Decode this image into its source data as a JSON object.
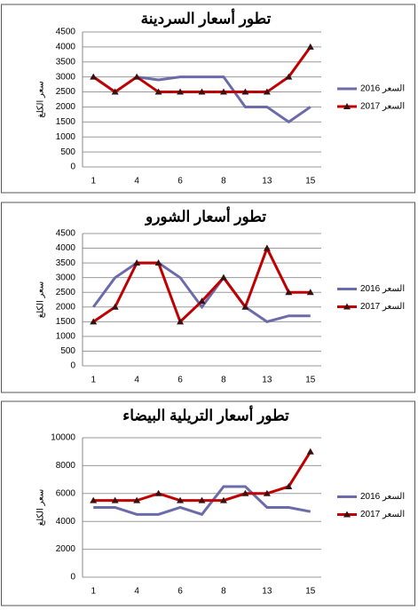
{
  "chart_data": [
    {
      "type": "line",
      "title": "تطور أسعار السردينة",
      "y_label": "سعر الكلغ",
      "categories": [
        "1",
        null,
        "4",
        null,
        "6",
        null,
        "8",
        null,
        "13",
        null,
        "15"
      ],
      "series": [
        {
          "name": "السعر 2016",
          "color": "#6b6baa",
          "values": [
            3000,
            2500,
            3000,
            2900,
            3000,
            3000,
            3000,
            2000,
            2000,
            1500,
            2000
          ]
        },
        {
          "name": "السعر 2017",
          "color": "#c00000",
          "marker": "triangle",
          "values": [
            3000,
            2500,
            3000,
            2500,
            2500,
            2500,
            2500,
            2500,
            2500,
            3000,
            4000
          ]
        }
      ],
      "ylim": [
        0,
        4500
      ],
      "yticks": [
        0,
        500,
        1000,
        1500,
        2000,
        2500,
        3000,
        3500,
        4000,
        4500
      ],
      "grid": true,
      "legend": "right"
    },
    {
      "type": "line",
      "title": "تطور أسعار الشورو",
      "y_label": "سعر الكلغ",
      "categories": [
        "1",
        null,
        "4",
        null,
        "6",
        null,
        "8",
        null,
        "13",
        null,
        "15"
      ],
      "series": [
        {
          "name": "السعر 2016",
          "color": "#6b6baa",
          "values": [
            2000,
            3000,
            3500,
            3500,
            3000,
            2000,
            3000,
            2000,
            1500,
            1700,
            1700
          ]
        },
        {
          "name": "السعر 2017",
          "color": "#c00000",
          "marker": "triangle",
          "values": [
            1500,
            2000,
            3500,
            3500,
            1500,
            2200,
            3000,
            2000,
            4000,
            2500,
            2500
          ]
        }
      ],
      "ylim": [
        0,
        4500
      ],
      "yticks": [
        0,
        500,
        1000,
        1500,
        2000,
        2500,
        3000,
        3500,
        4000,
        4500
      ],
      "grid": true,
      "legend": "right"
    },
    {
      "type": "line",
      "title": "تطور أسعار التريلية البيضاء",
      "y_label": "سعر الكلغ",
      "categories": [
        "1",
        null,
        "4",
        null,
        "6",
        null,
        "8",
        null,
        "13",
        null,
        "15"
      ],
      "series": [
        {
          "name": "السعر 2016",
          "color": "#6b6baa",
          "values": [
            5000,
            5000,
            4500,
            4500,
            5000,
            4500,
            6500,
            6500,
            5000,
            5000,
            4700
          ]
        },
        {
          "name": "السعر 2017",
          "color": "#c00000",
          "marker": "triangle",
          "values": [
            5500,
            5500,
            5500,
            6000,
            5500,
            5500,
            5500,
            6000,
            6000,
            6500,
            9000
          ]
        }
      ],
      "ylim": [
        0,
        10000
      ],
      "yticks": [
        0,
        2000,
        4000,
        6000,
        8000,
        10000
      ],
      "grid": true,
      "legend": "right"
    }
  ]
}
